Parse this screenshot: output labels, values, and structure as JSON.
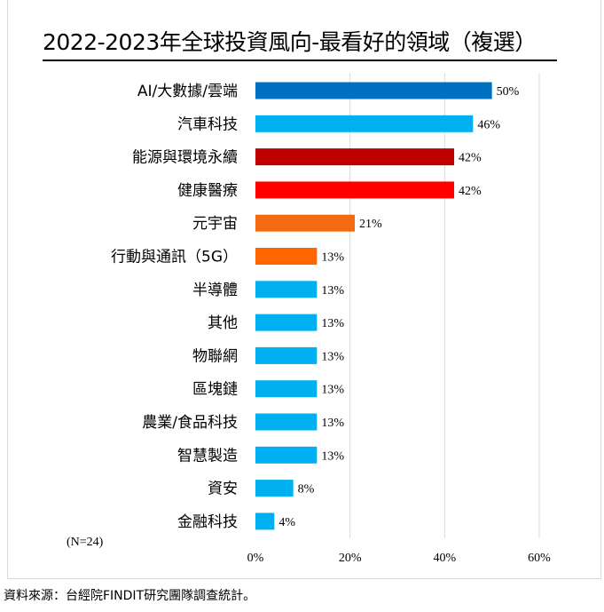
{
  "chart_data": {
    "type": "bar",
    "orientation": "horizontal",
    "title": "2022-2023年全球投資風向-最看好的領域（複選）",
    "note": "(N=24)",
    "categories": [
      "AI/大數據/雲端",
      "汽車科技",
      "能源與環境永續",
      "健康醫療",
      "元宇宙",
      "行動與通訊（5G）",
      "半導體",
      "其他",
      "物聯網",
      "區塊鏈",
      "農業/食品科技",
      "智慧製造",
      "資安",
      "金融科技"
    ],
    "values": [
      50,
      46,
      42,
      42,
      21,
      13,
      13,
      13,
      13,
      13,
      13,
      13,
      8,
      4
    ],
    "value_labels": [
      "50%",
      "46%",
      "42%",
      "42%",
      "21%",
      "13%",
      "13%",
      "13%",
      "13%",
      "13%",
      "13%",
      "13%",
      "8%",
      "4%"
    ],
    "colors": [
      "#0070c0",
      "#00b0f0",
      "#c00000",
      "#ff0000",
      "#f26b10",
      "#ff6600",
      "#00b0f0",
      "#00b0f0",
      "#00b0f0",
      "#00b0f0",
      "#00b0f0",
      "#00b0f0",
      "#00b0f0",
      "#00b0f0"
    ],
    "xlim": [
      0,
      60
    ],
    "x_ticks": [
      "0%",
      "20%",
      "40%",
      "60%"
    ],
    "x_tick_values": [
      0,
      20,
      40,
      60
    ],
    "grid": true,
    "xlabel": "",
    "ylabel": ""
  },
  "source": "資料來源：台經院FINDIT研究團隊調查統計。"
}
